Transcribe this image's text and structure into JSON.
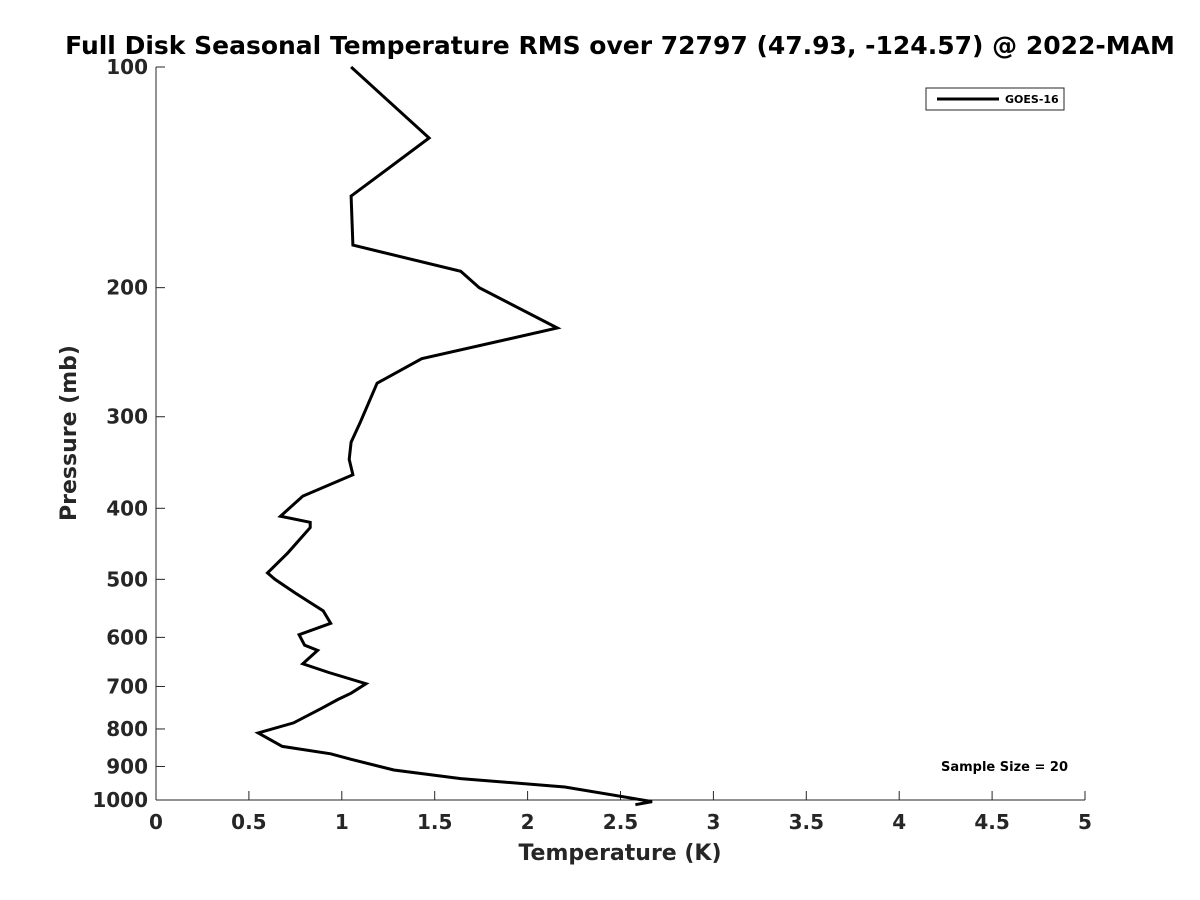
{
  "chart_data": {
    "type": "line",
    "title": "Full Disk Seasonal Temperature RMS over 72797 (47.93, -124.57) @ 2022-MAM",
    "xlabel": "Temperature (K)",
    "ylabel": "Pressure (mb)",
    "xlim": [
      0,
      5
    ],
    "ylim": [
      100,
      1000
    ],
    "yscale": "log",
    "yreversed": true,
    "grid": false,
    "legend_position": "top-right",
    "x_ticks": [
      "0",
      "0.5",
      "1",
      "1.5",
      "2",
      "2.5",
      "3",
      "3.5",
      "4",
      "4.5",
      "5"
    ],
    "x_tick_values": [
      0,
      0.5,
      1,
      1.5,
      2,
      2.5,
      3,
      3.5,
      4,
      4.5,
      5
    ],
    "y_ticks": [
      "100",
      "200",
      "300",
      "400",
      "500",
      "600",
      "700",
      "800",
      "900",
      "1000"
    ],
    "y_tick_values": [
      100,
      200,
      300,
      400,
      500,
      600,
      700,
      800,
      900,
      1000
    ],
    "annotation": "Sample Size = 20",
    "series": [
      {
        "name": "GOES-16",
        "color": "#000000",
        "x": [
          1.05,
          1.47,
          1.05,
          1.06,
          1.64,
          1.74,
          2.16,
          1.43,
          1.19,
          1.1,
          1.05,
          1.04,
          1.06,
          0.79,
          0.67,
          0.83,
          0.83,
          0.71,
          0.6,
          0.64,
          0.75,
          0.9,
          0.94,
          0.77,
          0.8,
          0.87,
          0.79,
          0.93,
          1.13,
          1.05,
          0.98,
          0.89,
          0.74,
          0.55,
          0.68,
          0.94,
          1.05,
          1.28,
          1.64,
          2.2,
          2.67,
          2.58
        ],
        "y": [
          100,
          125,
          150,
          175,
          190,
          200,
          227,
          250,
          270,
          305,
          325,
          343,
          360,
          385,
          410,
          418,
          425,
          460,
          490,
          500,
          522,
          552,
          574,
          595,
          615,
          625,
          652,
          670,
          694,
          715,
          729,
          750,
          785,
          810,
          845,
          865,
          880,
          910,
          935,
          960,
          1005,
          1015
        ]
      }
    ]
  }
}
